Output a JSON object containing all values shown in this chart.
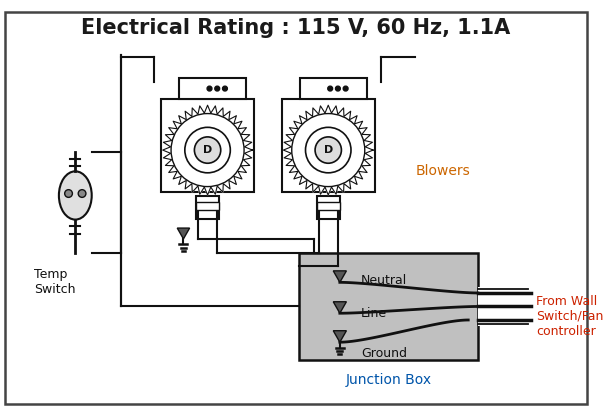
{
  "title": "Electrical Rating : 115 V, 60 Hz, 1.1A",
  "title_fontsize": 15,
  "title_color": "#1a1a1a",
  "background_color": "#ffffff",
  "border_color": "#333333",
  "label_blowers": "Blowers",
  "label_temp_switch": "Temp\nSwitch",
  "label_junction_box": "Junction Box",
  "label_neutral": "Neutral",
  "label_line": "Line",
  "label_ground": "Ground",
  "label_from_wall": "From Wall\nSwitch/Fan\ncontroller",
  "line_color": "#111111",
  "box_fill": "#c0c0c0",
  "fig_width": 6.13,
  "fig_height": 4.16,
  "dpi": 100
}
